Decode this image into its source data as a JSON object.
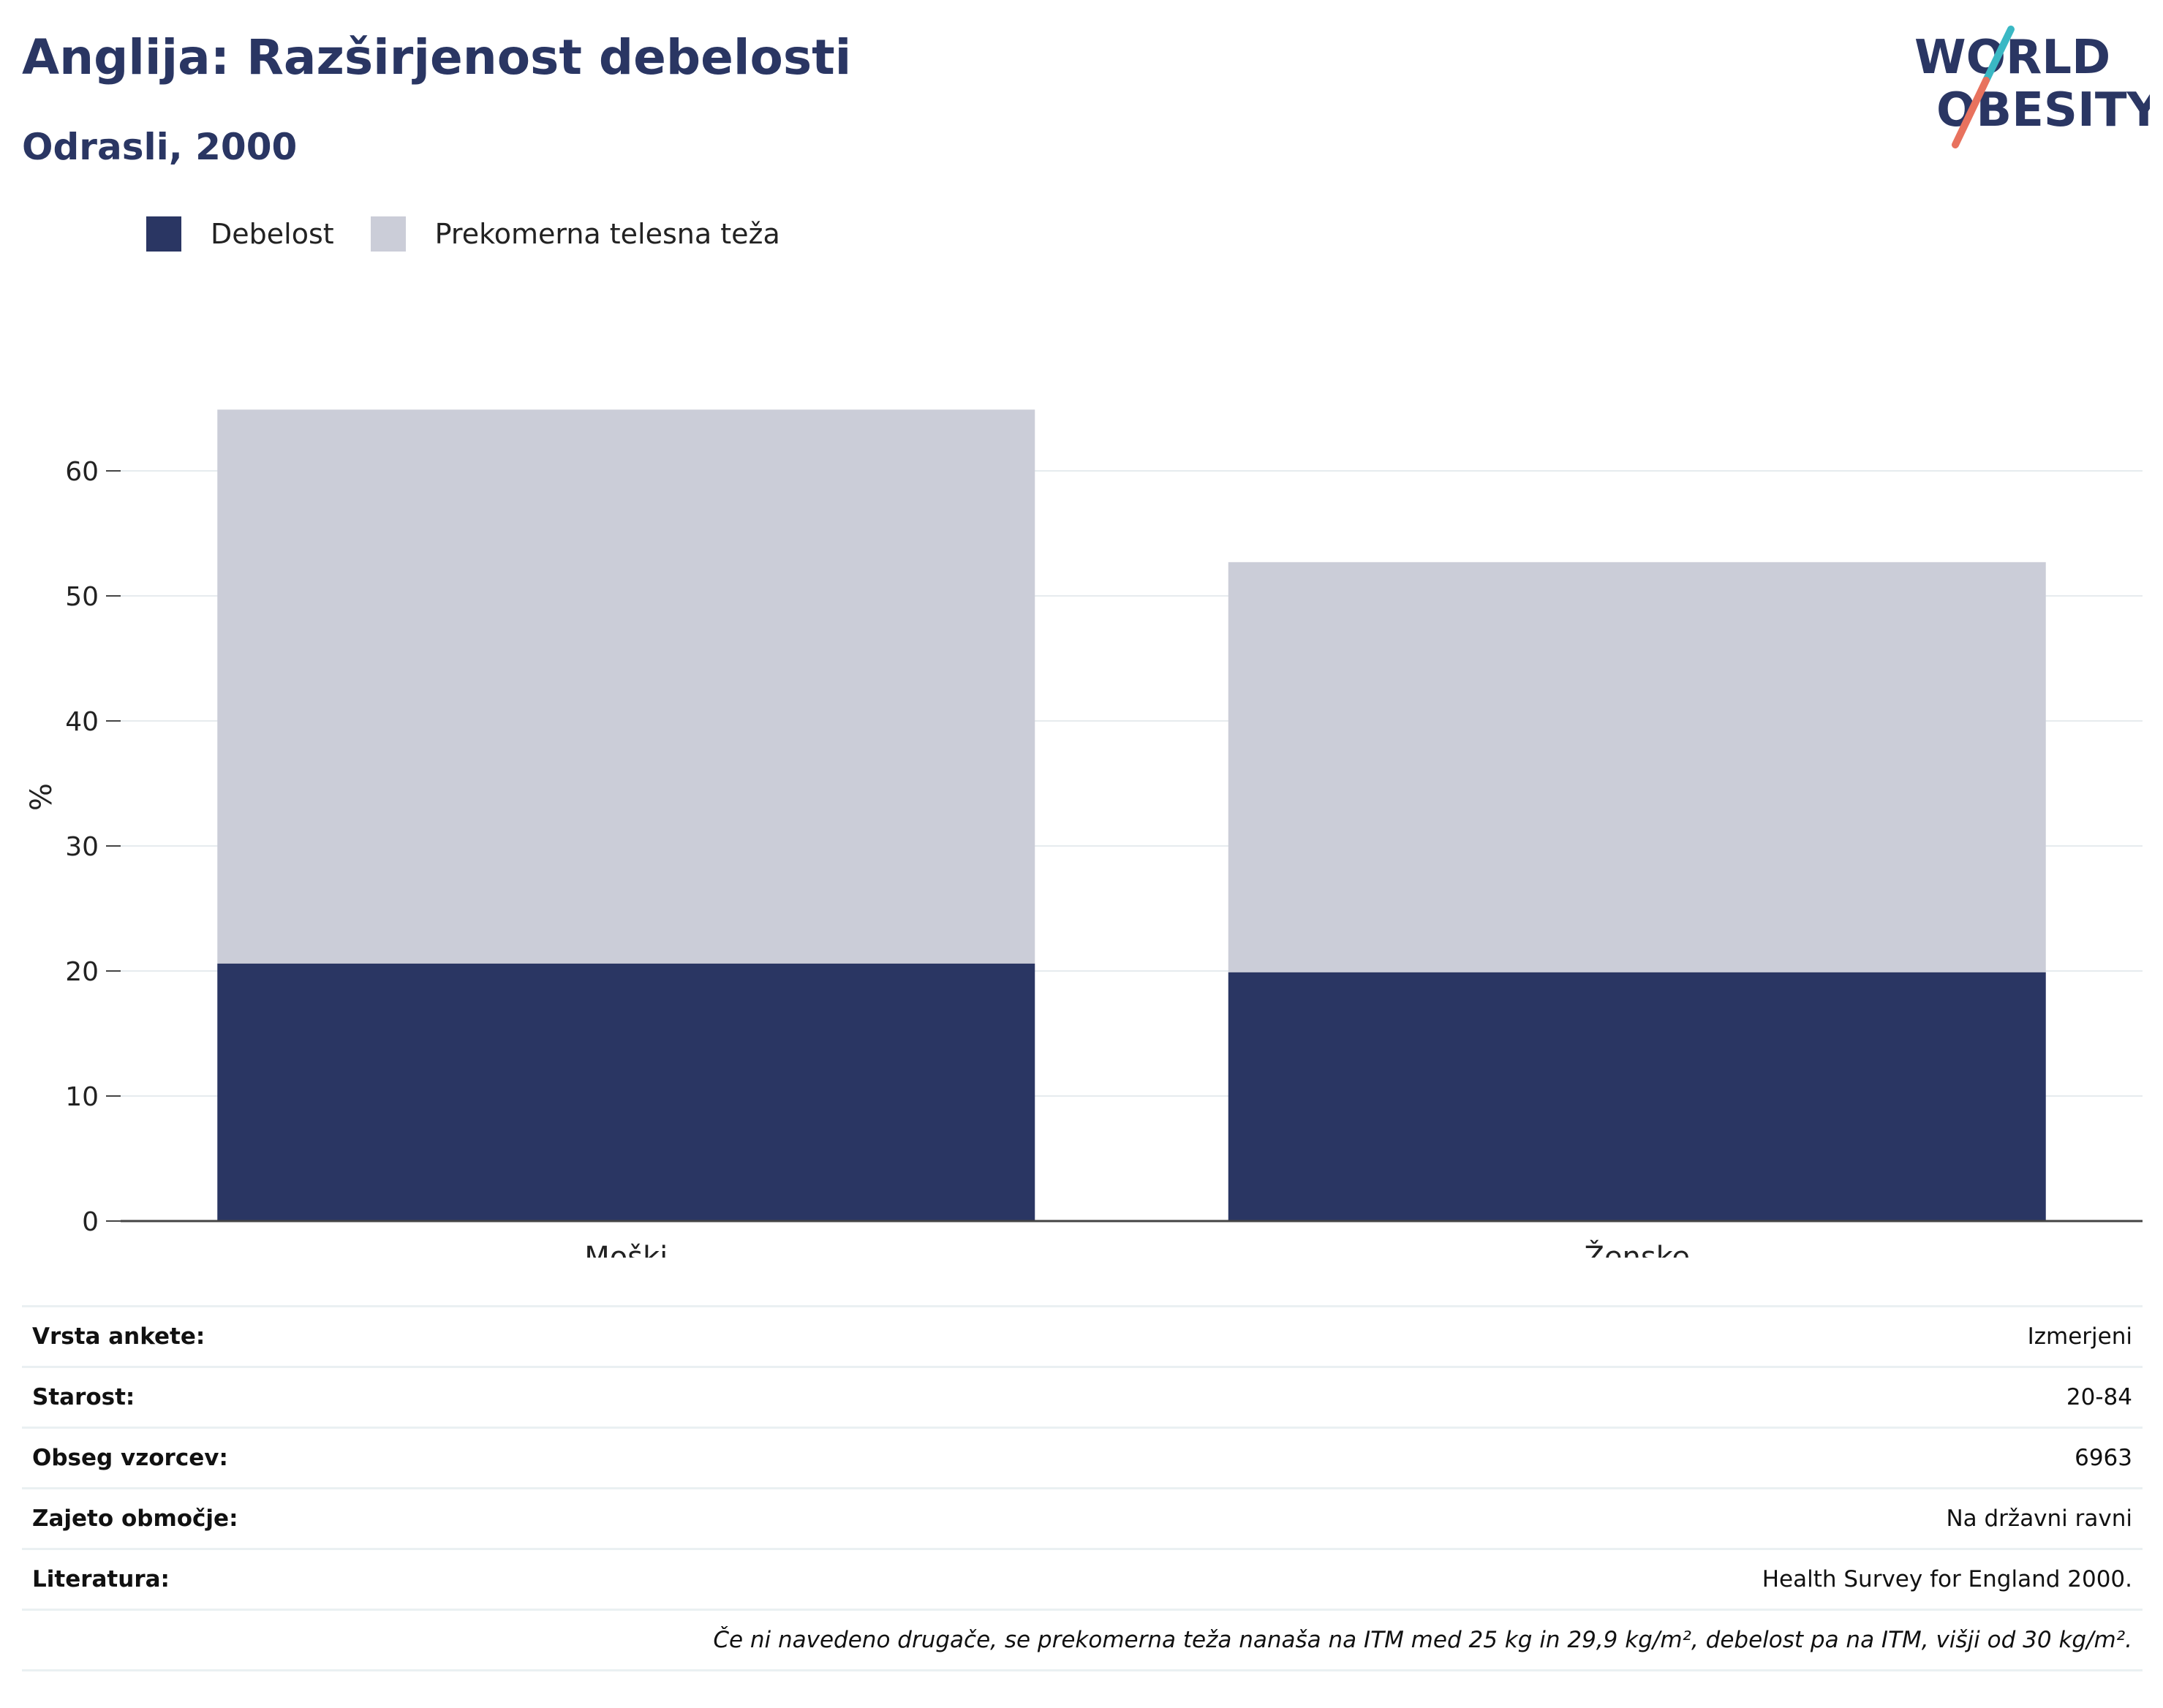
{
  "header": {
    "title": "Anglija: Razširjenost debelosti",
    "subtitle": "Odrasli, 2000"
  },
  "logo": {
    "line1": "WORLD",
    "line2": "OBESITY",
    "colors": {
      "navy": "#2a3663",
      "teal": "#3ab8c4",
      "coral": "#e8725e"
    }
  },
  "legend": [
    {
      "label": "Debelost",
      "color": "#2a3663"
    },
    {
      "label": "Prekomerna telesna teža",
      "color": "#cbcdd8"
    }
  ],
  "chart_data": {
    "type": "bar",
    "stacked": true,
    "categories": [
      "Moški",
      "Ženske"
    ],
    "series": [
      {
        "name": "Debelost",
        "color": "#2a3663",
        "values": [
          20.6,
          19.9
        ]
      },
      {
        "name": "Prekomerna telesna teža",
        "color": "#cbcdd8",
        "values": [
          44.3,
          32.8
        ]
      }
    ],
    "ylabel": "%",
    "ylim": [
      0,
      70
    ],
    "yticks": [
      0,
      10,
      20,
      30,
      40,
      50,
      60
    ],
    "grid": true,
    "legend_position": "top-left"
  },
  "info": [
    {
      "key": "Vrsta ankete:",
      "value": "Izmerjeni"
    },
    {
      "key": "Starost:",
      "value": "20-84"
    },
    {
      "key": "Obseg vzorcev:",
      "value": "6963"
    },
    {
      "key": "Zajeto območje:",
      "value": "Na državni ravni"
    },
    {
      "key": "Literatura:",
      "value": "Health Survey for England 2000."
    }
  ],
  "note": "Če ni navedeno drugače, se prekomerna teža nanaša na ITM med 25 kg in 29,9 kg/m², debelost pa na ITM, višji od 30 kg/m²."
}
